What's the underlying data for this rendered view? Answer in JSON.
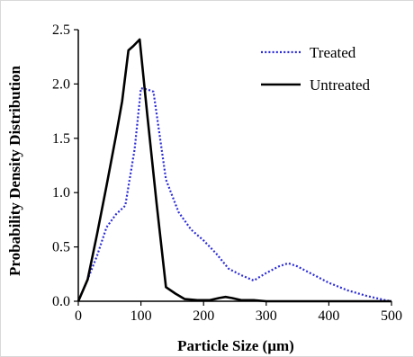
{
  "chart_data": {
    "type": "line",
    "xlabel": "Particle Size (µm)",
    "ylabel": "Probability Density Distribution",
    "xlim": [
      0,
      500
    ],
    "ylim": [
      0,
      2.5
    ],
    "x_ticks": [
      "0",
      "100",
      "200",
      "300",
      "400",
      "500"
    ],
    "y_ticks": [
      "0.0",
      "0.5",
      "1.0",
      "1.5",
      "2.0",
      "2.5"
    ],
    "grid": false,
    "legend_position": "top-right",
    "series": [
      {
        "name": "Treated",
        "style": "dotted",
        "color": "#2b2bd9",
        "points": [
          [
            0,
            0
          ],
          [
            15,
            0.2
          ],
          [
            30,
            0.42
          ],
          [
            45,
            0.68
          ],
          [
            60,
            0.8
          ],
          [
            75,
            0.88
          ],
          [
            90,
            1.4
          ],
          [
            100,
            1.96
          ],
          [
            110,
            1.95
          ],
          [
            120,
            1.93
          ],
          [
            140,
            1.12
          ],
          [
            160,
            0.82
          ],
          [
            180,
            0.66
          ],
          [
            200,
            0.56
          ],
          [
            220,
            0.44
          ],
          [
            240,
            0.3
          ],
          [
            260,
            0.24
          ],
          [
            280,
            0.19
          ],
          [
            300,
            0.26
          ],
          [
            320,
            0.32
          ],
          [
            335,
            0.35
          ],
          [
            350,
            0.32
          ],
          [
            370,
            0.26
          ],
          [
            400,
            0.17
          ],
          [
            430,
            0.1
          ],
          [
            460,
            0.05
          ],
          [
            490,
            0.01
          ],
          [
            500,
            0
          ]
        ]
      },
      {
        "name": "Untreated",
        "style": "solid",
        "color": "#000000",
        "points": [
          [
            0,
            0
          ],
          [
            15,
            0.2
          ],
          [
            30,
            0.62
          ],
          [
            45,
            1.06
          ],
          [
            60,
            1.52
          ],
          [
            70,
            1.84
          ],
          [
            80,
            2.31
          ],
          [
            88,
            2.35
          ],
          [
            98,
            2.41
          ],
          [
            110,
            1.72
          ],
          [
            125,
            0.9
          ],
          [
            140,
            0.13
          ],
          [
            155,
            0.07
          ],
          [
            170,
            0.02
          ],
          [
            190,
            0.01
          ],
          [
            210,
            0.01
          ],
          [
            225,
            0.03
          ],
          [
            235,
            0.04
          ],
          [
            245,
            0.03
          ],
          [
            260,
            0.01
          ],
          [
            280,
            0.01
          ],
          [
            300,
            0
          ],
          [
            500,
            0
          ]
        ]
      }
    ]
  }
}
